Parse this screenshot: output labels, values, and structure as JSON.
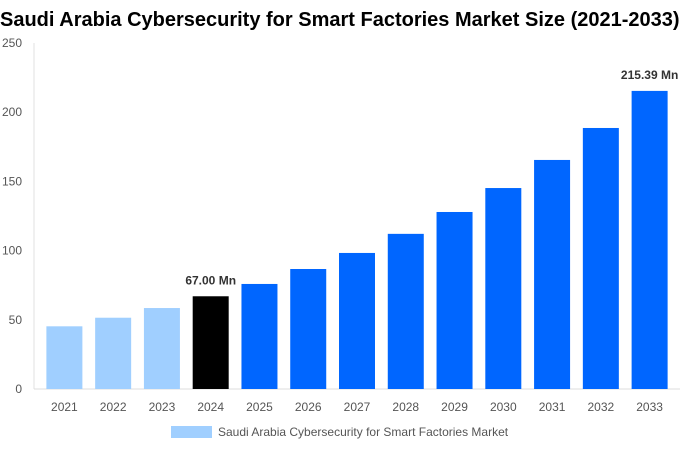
{
  "chart_data": {
    "type": "bar",
    "title": "Saudi Arabia Cybersecurity for Smart Factories Market Size (2021-2033)",
    "categories": [
      "2021",
      "2022",
      "2023",
      "2024",
      "2025",
      "2026",
      "2027",
      "2028",
      "2029",
      "2030",
      "2031",
      "2032",
      "2033"
    ],
    "series": [
      {
        "name": "Saudi Arabia Cybersecurity for Smart Factories Market",
        "values": [
          45.3,
          51.5,
          58.5,
          67.0,
          75.9,
          86.7,
          98.3,
          112.1,
          127.9,
          145.2,
          165.5,
          188.6,
          215.39
        ]
      }
    ],
    "bar_colors": [
      "#a0cfff",
      "#a0cfff",
      "#a0cfff",
      "#000000",
      "#0066ff",
      "#0066ff",
      "#0066ff",
      "#0066ff",
      "#0066ff",
      "#0066ff",
      "#0066ff",
      "#0066ff",
      "#0066ff"
    ],
    "data_labels": {
      "2024": "67.00 Mn",
      "2033": "215.39 Mn"
    },
    "ylim": [
      0,
      250
    ],
    "yticks": [
      0,
      50,
      100,
      150,
      200,
      250
    ],
    "grid": false,
    "legend": "bottom",
    "xlabel": "",
    "ylabel": ""
  }
}
